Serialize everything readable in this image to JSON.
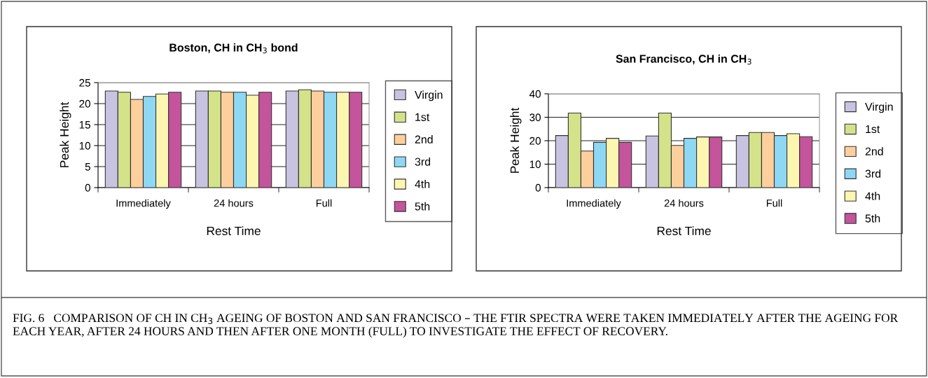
{
  "chart_data": [
    {
      "type": "bar",
      "title": "Boston, CH in CH$_{3}$ bond",
      "xlabel": "Rest Time",
      "ylabel": "Peak Height",
      "categories": [
        "Immediately",
        "24 hours",
        "Full"
      ],
      "series": [
        {
          "name": "Virgin",
          "color": "#c8c3e0",
          "values": [
            23,
            23,
            23
          ]
        },
        {
          "name": "1st",
          "color": "#d4e38a",
          "values": [
            22.7,
            23,
            23.3
          ]
        },
        {
          "name": "2nd",
          "color": "#fccf9c",
          "values": [
            21,
            22.7,
            23
          ]
        },
        {
          "name": "3rd",
          "color": "#8ed8f4",
          "values": [
            21.7,
            22.7,
            22.7
          ]
        },
        {
          "name": "4th",
          "color": "#fdf6b0",
          "values": [
            22.3,
            22,
            22.7
          ]
        },
        {
          "name": "5th",
          "color": "#c4549c",
          "values": [
            22.7,
            22.7,
            22.7
          ]
        }
      ],
      "ylim": [
        0,
        25
      ],
      "yticks": [
        0,
        5,
        10,
        15,
        20,
        25
      ],
      "grid": "y",
      "legend": "right",
      "annotations": [
        "FIG. 6   COMPARISON OF CH IN CH$_{3}$ AGEING OF BOSTON AND SAN FRANCISCO – THE FTIR SPECTRA WERE TAKEN IMMEDIATELY AFTER THE AGEING FOR EACH YEAR, AFTER 24 HOURS AND THEN AFTER ONE MONTH (FULL) TO INVESTIGATE THE EFFECT OF RECOVERY."
      ]
    },
    {
      "type": "bar",
      "title": "San Francisco, CH in CH$_{3}$",
      "xlabel": "Rest Time",
      "ylabel": "Peak Height",
      "categories": [
        "Immediately",
        "24 hours",
        "Full"
      ],
      "series": [
        {
          "name": "Virgin",
          "color": "#c8c3e0",
          "values": [
            22.2,
            22,
            22.2
          ]
        },
        {
          "name": "1st",
          "color": "#d4e38a",
          "values": [
            31.8,
            31.8,
            23.5
          ]
        },
        {
          "name": "2nd",
          "color": "#fccf9c",
          "values": [
            15.6,
            18,
            23.5
          ]
        },
        {
          "name": "3rd",
          "color": "#8ed8f4",
          "values": [
            19.3,
            21,
            22.2
          ]
        },
        {
          "name": "4th",
          "color": "#fdf6b0",
          "values": [
            21,
            21.6,
            23
          ]
        },
        {
          "name": "5th",
          "color": "#c4549c",
          "values": [
            19.3,
            21.6,
            21.7
          ]
        }
      ],
      "ylim": [
        0,
        40
      ],
      "yticks": [
        0,
        10,
        20,
        30,
        40
      ],
      "grid": "y",
      "legend": "right"
    }
  ]
}
